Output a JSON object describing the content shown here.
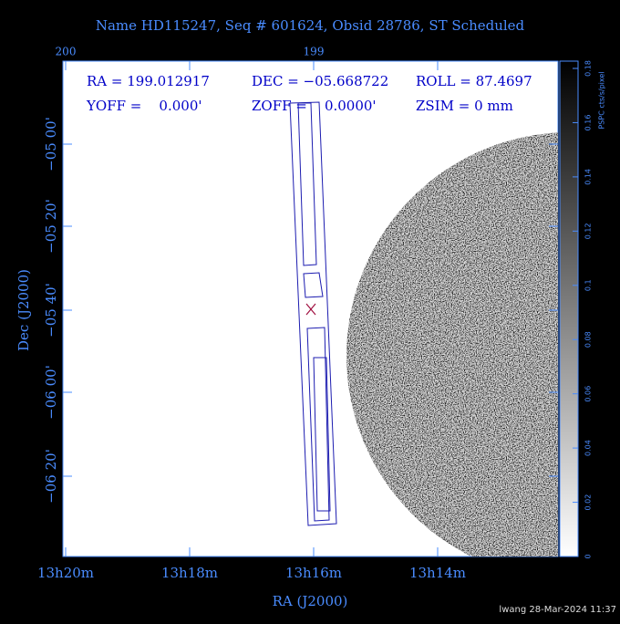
{
  "title": "Name HD115247, Seq # 601624, Obsid 28786, ST Scheduled",
  "top_axis": [
    "200",
    "199"
  ],
  "info": [
    "RA = 199.012917",
    "DEC = −05.668722",
    "ROLL = 87.4697",
    "YOFF =    0.000'",
    "ZOFF =    0.0000'",
    "ZSIM = 0 mm"
  ],
  "y_axis": {
    "title": "Dec (J2000)",
    "ticks": [
      "−05 00'",
      "−05 20'",
      "−05 40'",
      "−06 00'",
      "−06 20'"
    ]
  },
  "x_axis": {
    "title": "RA (J2000)",
    "ticks": [
      "13h20m",
      "13h18m",
      "13h16m",
      "13h14m"
    ]
  },
  "colorbar": {
    "label": "PSPC cts/s/pixel",
    "ticks": [
      "0",
      "0.02",
      "0.04",
      "0.06",
      "0.08",
      "0.1",
      "0.12",
      "0.14",
      "0.16",
      "0.18"
    ]
  },
  "footer": "lwang 28-Mar-2024 11:37"
}
